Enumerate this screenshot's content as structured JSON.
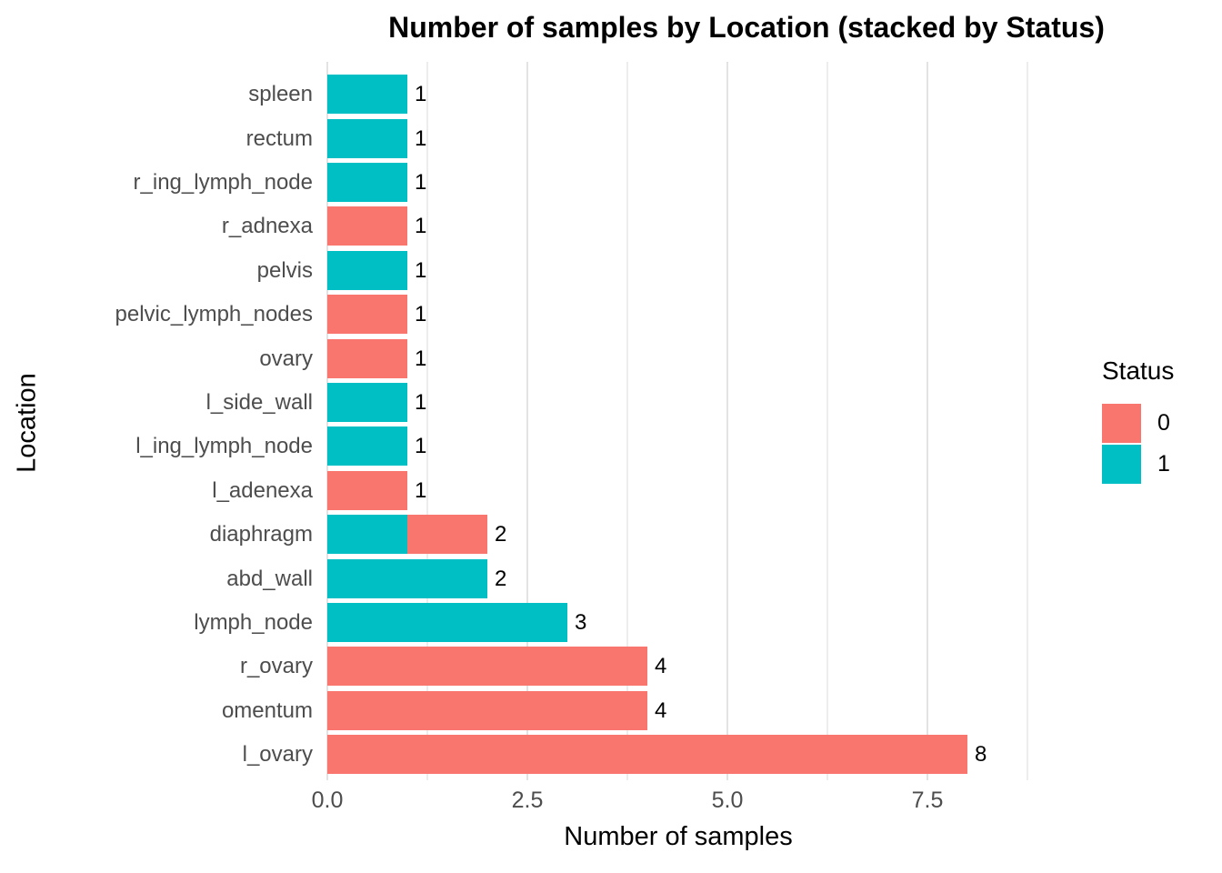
{
  "chart_data": {
    "type": "bar",
    "orientation": "horizontal",
    "stacked": true,
    "title": "Number of samples by Location (stacked by Status)",
    "xlabel": "Number of samples",
    "ylabel": "Location",
    "xlim": [
      0,
      8.8
    ],
    "grid": "vertical major+minor, light gray, no panel border",
    "x_ticks": [
      {
        "value": 0.0,
        "label": "0.0"
      },
      {
        "value": 2.5,
        "label": "2.5"
      },
      {
        "value": 5.0,
        "label": "5.0"
      },
      {
        "value": 7.5,
        "label": "7.5"
      }
    ],
    "x_minor_gridlines": [
      1.25,
      3.75,
      6.25,
      8.75
    ],
    "status_colors": {
      "0": "#F8766D",
      "1": "#00BFC4"
    },
    "legend": {
      "title": "Status",
      "position": "right",
      "entries": [
        {
          "label": "0",
          "color": "#F8766D"
        },
        {
          "label": "1",
          "color": "#00BFC4"
        }
      ]
    },
    "categories_top_to_bottom": [
      "spleen",
      "rectum",
      "r_ing_lymph_node",
      "r_adnexa",
      "pelvis",
      "pelvic_lymph_nodes",
      "ovary",
      "l_side_wall",
      "l_ing_lymph_node",
      "l_adenexa",
      "diaphragm",
      "abd_wall",
      "lymph_node",
      "r_ovary",
      "omentum",
      "l_ovary"
    ],
    "bars": [
      {
        "category": "spleen",
        "segments": [
          {
            "status": "1",
            "value": 1
          }
        ],
        "total": 1,
        "total_label": "1"
      },
      {
        "category": "rectum",
        "segments": [
          {
            "status": "1",
            "value": 1
          }
        ],
        "total": 1,
        "total_label": "1"
      },
      {
        "category": "r_ing_lymph_node",
        "segments": [
          {
            "status": "1",
            "value": 1
          }
        ],
        "total": 1,
        "total_label": "1"
      },
      {
        "category": "r_adnexa",
        "segments": [
          {
            "status": "0",
            "value": 1
          }
        ],
        "total": 1,
        "total_label": "1"
      },
      {
        "category": "pelvis",
        "segments": [
          {
            "status": "1",
            "value": 1
          }
        ],
        "total": 1,
        "total_label": "1"
      },
      {
        "category": "pelvic_lymph_nodes",
        "segments": [
          {
            "status": "0",
            "value": 1
          }
        ],
        "total": 1,
        "total_label": "1"
      },
      {
        "category": "ovary",
        "segments": [
          {
            "status": "0",
            "value": 1
          }
        ],
        "total": 1,
        "total_label": "1"
      },
      {
        "category": "l_side_wall",
        "segments": [
          {
            "status": "1",
            "value": 1
          }
        ],
        "total": 1,
        "total_label": "1"
      },
      {
        "category": "l_ing_lymph_node",
        "segments": [
          {
            "status": "1",
            "value": 1
          }
        ],
        "total": 1,
        "total_label": "1"
      },
      {
        "category": "l_adenexa",
        "segments": [
          {
            "status": "0",
            "value": 1
          }
        ],
        "total": 1,
        "total_label": "1"
      },
      {
        "category": "diaphragm",
        "segments": [
          {
            "status": "1",
            "value": 1
          },
          {
            "status": "0",
            "value": 1
          }
        ],
        "total": 2,
        "total_label": "2"
      },
      {
        "category": "abd_wall",
        "segments": [
          {
            "status": "1",
            "value": 2
          }
        ],
        "total": 2,
        "total_label": "2"
      },
      {
        "category": "lymph_node",
        "segments": [
          {
            "status": "1",
            "value": 3
          }
        ],
        "total": 3,
        "total_label": "3"
      },
      {
        "category": "r_ovary",
        "segments": [
          {
            "status": "0",
            "value": 4
          }
        ],
        "total": 4,
        "total_label": "4"
      },
      {
        "category": "omentum",
        "segments": [
          {
            "status": "0",
            "value": 4
          }
        ],
        "total": 4,
        "total_label": "4"
      },
      {
        "category": "l_ovary",
        "segments": [
          {
            "status": "0",
            "value": 8
          }
        ],
        "total": 8,
        "total_label": "8"
      }
    ]
  },
  "colors": {
    "background": "#FFFFFF",
    "grid_major": "#E3E3E3",
    "grid_minor": "#EDEDED",
    "axis_text": "#4D4D4D",
    "text": "#000000"
  }
}
